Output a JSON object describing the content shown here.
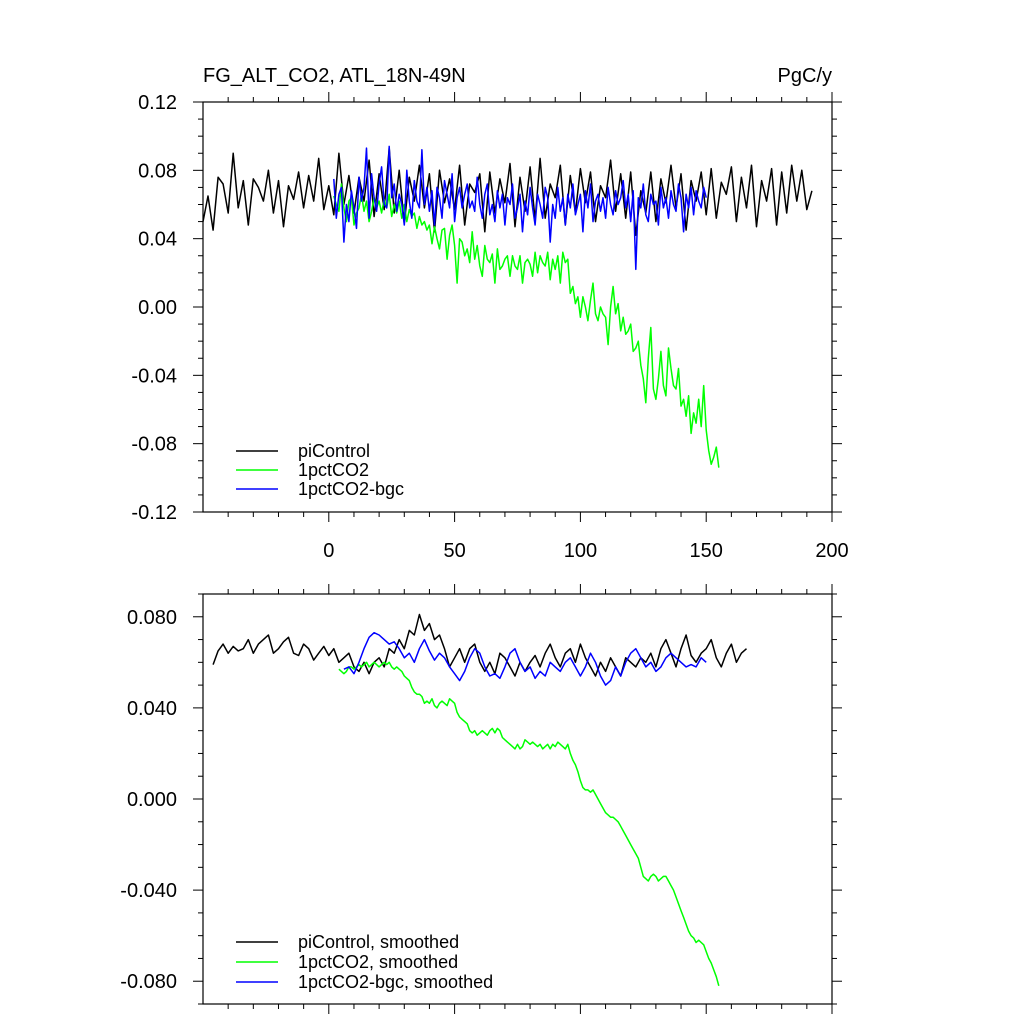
{
  "chart_data": [
    {
      "type": "line",
      "title_left": "FG_ALT_CO2, ATL_18N-49N",
      "title_right": "PgC/y",
      "xlabel": "",
      "ylabel": "",
      "xlim": [
        -50,
        200
      ],
      "ylim": [
        -0.12,
        0.12
      ],
      "xticks": [
        0,
        50,
        100,
        150,
        200
      ],
      "xtick_labels": [
        "0",
        "50",
        "100",
        "150",
        "200"
      ],
      "yticks": [
        -0.12,
        -0.08,
        -0.04,
        0.0,
        0.04,
        0.08,
        0.12
      ],
      "ytick_labels": [
        "-0.12",
        "-0.08",
        "-0.04",
        "0.00",
        "0.04",
        "0.08",
        "0.12"
      ],
      "legend_position": "bottom-left",
      "series": [
        {
          "name": "piControl",
          "color": "#000000",
          "x_start": -50,
          "x_step": 2,
          "values": [
            0.05,
            0.065,
            0.045,
            0.076,
            0.072,
            0.055,
            0.09,
            0.058,
            0.074,
            0.048,
            0.075,
            0.07,
            0.062,
            0.08,
            0.055,
            0.074,
            0.047,
            0.071,
            0.063,
            0.079,
            0.058,
            0.077,
            0.062,
            0.087,
            0.057,
            0.071,
            0.054,
            0.09,
            0.06,
            0.077,
            0.055,
            0.076,
            0.062,
            0.086,
            0.053,
            0.078,
            0.057,
            0.093,
            0.055,
            0.08,
            0.049,
            0.076,
            0.062,
            0.083,
            0.058,
            0.078,
            0.044,
            0.08,
            0.061,
            0.075,
            0.057,
            0.083,
            0.048,
            0.072,
            0.067,
            0.078,
            0.044,
            0.079,
            0.055,
            0.075,
            0.061,
            0.084,
            0.047,
            0.076,
            0.056,
            0.082,
            0.051,
            0.087,
            0.052,
            0.072,
            0.064,
            0.083,
            0.048,
            0.077,
            0.055,
            0.081,
            0.061,
            0.079,
            0.05,
            0.071,
            0.064,
            0.086,
            0.056,
            0.078,
            0.052,
            0.079,
            0.042,
            0.068,
            0.055,
            0.079,
            0.05,
            0.075,
            0.061,
            0.083,
            0.058,
            0.078,
            0.045,
            0.074,
            0.062,
            0.079,
            0.054,
            0.081,
            0.052,
            0.073,
            0.066,
            0.082,
            0.05,
            0.076,
            0.058,
            0.083,
            0.047,
            0.074,
            0.062,
            0.081,
            0.048,
            0.079,
            0.055,
            0.083,
            0.062,
            0.08,
            0.057,
            0.068
          ]
        },
        {
          "name": "1pctCO2",
          "color": "#00ff00",
          "x_start": 2,
          "x_step": 1,
          "values": [
            0.065,
            0.06,
            0.056,
            0.072,
            0.058,
            0.05,
            0.062,
            0.064,
            0.048,
            0.055,
            0.058,
            0.066,
            0.056,
            0.062,
            0.05,
            0.056,
            0.064,
            0.058,
            0.062,
            0.055,
            0.063,
            0.058,
            0.066,
            0.053,
            0.06,
            0.055,
            0.062,
            0.052,
            0.06,
            0.05,
            0.057,
            0.053,
            0.055,
            0.046,
            0.053,
            0.048,
            0.05,
            0.045,
            0.048,
            0.037,
            0.047,
            0.04,
            0.034,
            0.045,
            0.046,
            0.028,
            0.042,
            0.048,
            0.036,
            0.014,
            0.04,
            0.038,
            0.03,
            0.034,
            0.026,
            0.044,
            0.028,
            0.036,
            0.024,
            0.018,
            0.036,
            0.028,
            0.026,
            0.031,
            0.014,
            0.034,
            0.022,
            0.024,
            0.028,
            0.03,
            0.018,
            0.03,
            0.024,
            0.022,
            0.03,
            0.014,
            0.026,
            0.028,
            0.025,
            0.018,
            0.032,
            0.02,
            0.03,
            0.026,
            0.024,
            0.032,
            0.016,
            0.028,
            0.022,
            0.03,
            0.014,
            0.032,
            0.026,
            0.028,
            0.008,
            0.012,
            0.002,
            0.006,
            -0.006,
            0.006,
            0.0,
            -0.008,
            0.004,
            0.014,
            -0.004,
            -0.008,
            0.0,
            -0.004,
            -0.006,
            -0.022,
            0.0,
            0.012,
            -0.004,
            0.002,
            -0.014,
            -0.006,
            -0.016,
            -0.014,
            -0.01,
            -0.026,
            -0.024,
            -0.02,
            -0.034,
            -0.042,
            -0.056,
            -0.03,
            -0.012,
            -0.048,
            -0.054,
            -0.042,
            -0.026,
            -0.046,
            -0.052,
            -0.024,
            -0.036,
            -0.046,
            -0.048,
            -0.036,
            -0.058,
            -0.054,
            -0.064,
            -0.052,
            -0.074,
            -0.062,
            -0.068,
            -0.054,
            -0.07,
            -0.046,
            -0.072,
            -0.084,
            -0.092,
            -0.088,
            -0.082,
            -0.094
          ]
        },
        {
          "name": "1pctCO2-bgc",
          "color": "#0000ff",
          "x_start": 2,
          "x_step": 1,
          "values": [
            0.075,
            0.052,
            0.066,
            0.07,
            0.038,
            0.06,
            0.05,
            0.068,
            0.058,
            0.046,
            0.076,
            0.062,
            0.07,
            0.093,
            0.052,
            0.078,
            0.064,
            0.056,
            0.072,
            0.082,
            0.06,
            0.058,
            0.094,
            0.064,
            0.072,
            0.056,
            0.066,
            0.06,
            0.048,
            0.08,
            0.062,
            0.052,
            0.074,
            0.062,
            0.058,
            0.092,
            0.06,
            0.07,
            0.056,
            0.068,
            0.048,
            0.07,
            0.064,
            0.052,
            0.074,
            0.066,
            0.058,
            0.078,
            0.05,
            0.064,
            0.07,
            0.058,
            0.066,
            0.072,
            0.058,
            0.062,
            0.056,
            0.076,
            0.06,
            0.052,
            0.066,
            0.072,
            0.054,
            0.06,
            0.05,
            0.068,
            0.058,
            0.066,
            0.048,
            0.064,
            0.06,
            0.072,
            0.052,
            0.058,
            0.066,
            0.044,
            0.062,
            0.054,
            0.07,
            0.058,
            0.048,
            0.066,
            0.06,
            0.052,
            0.07,
            0.064,
            0.038,
            0.06,
            0.052,
            0.07,
            0.056,
            0.064,
            0.048,
            0.066,
            0.058,
            0.072,
            0.054,
            0.06,
            0.066,
            0.044,
            0.068,
            0.058,
            0.072,
            0.05,
            0.062,
            0.066,
            0.056,
            0.064,
            0.052,
            0.07,
            0.06,
            0.054,
            0.068,
            0.06,
            0.064,
            0.074,
            0.058,
            0.066,
            0.05,
            0.068,
            0.022,
            0.064,
            0.058,
            0.072,
            0.054,
            0.05,
            0.066,
            0.06,
            0.062,
            0.048,
            0.07,
            0.058,
            0.064,
            0.052,
            0.068,
            0.06,
            0.056,
            0.072,
            0.064,
            0.044,
            0.066,
            0.058,
            0.07,
            0.054,
            0.068,
            0.062,
            0.058,
            0.07,
            0.064
          ]
        }
      ]
    },
    {
      "type": "line",
      "title_left": "",
      "title_right": "",
      "xlabel": "",
      "ylabel": "",
      "xlim": [
        -50,
        200
      ],
      "ylim": [
        -0.09,
        0.09
      ],
      "xticks": [
        0,
        50,
        100,
        150,
        200
      ],
      "xtick_labels": [],
      "yticks": [
        -0.08,
        -0.04,
        0.0,
        0.04,
        0.08
      ],
      "ytick_labels": [
        "-0.080",
        "-0.040",
        "0.000",
        "0.040",
        "0.080"
      ],
      "legend_position": "bottom-left",
      "series": [
        {
          "name": "piControl, smoothed",
          "color": "#000000",
          "x_start": -46,
          "x_step": 2,
          "values": [
            0.059,
            0.065,
            0.068,
            0.064,
            0.067,
            0.065,
            0.066,
            0.07,
            0.064,
            0.068,
            0.07,
            0.072,
            0.064,
            0.066,
            0.069,
            0.071,
            0.064,
            0.063,
            0.068,
            0.066,
            0.061,
            0.064,
            0.067,
            0.063,
            0.066,
            0.06,
            0.062,
            0.064,
            0.058,
            0.056,
            0.06,
            0.055,
            0.06,
            0.062,
            0.058,
            0.066,
            0.064,
            0.07,
            0.066,
            0.074,
            0.072,
            0.081,
            0.074,
            0.077,
            0.07,
            0.072,
            0.066,
            0.058,
            0.062,
            0.066,
            0.06,
            0.066,
            0.068,
            0.06,
            0.056,
            0.06,
            0.055,
            0.064,
            0.062,
            0.058,
            0.054,
            0.06,
            0.056,
            0.06,
            0.063,
            0.058,
            0.064,
            0.068,
            0.062,
            0.058,
            0.064,
            0.066,
            0.06,
            0.068,
            0.062,
            0.058,
            0.054,
            0.06,
            0.056,
            0.062,
            0.058,
            0.054,
            0.062,
            0.06,
            0.058,
            0.062,
            0.06,
            0.064,
            0.058,
            0.066,
            0.07,
            0.064,
            0.058,
            0.066,
            0.072,
            0.063,
            0.06,
            0.064,
            0.066,
            0.07,
            0.062,
            0.058,
            0.064,
            0.068,
            0.06,
            0.064,
            0.066
          ]
        },
        {
          "name": "1pctCO2, smoothed",
          "color": "#00ff00",
          "x_start": 4,
          "x_step": 1,
          "values": [
            0.057,
            0.056,
            0.055,
            0.056,
            0.058,
            0.058,
            0.057,
            0.058,
            0.059,
            0.058,
            0.059,
            0.06,
            0.058,
            0.059,
            0.06,
            0.059,
            0.058,
            0.059,
            0.06,
            0.059,
            0.06,
            0.058,
            0.057,
            0.058,
            0.057,
            0.056,
            0.054,
            0.053,
            0.052,
            0.049,
            0.047,
            0.046,
            0.046,
            0.045,
            0.042,
            0.043,
            0.042,
            0.044,
            0.041,
            0.04,
            0.042,
            0.043,
            0.042,
            0.041,
            0.044,
            0.043,
            0.042,
            0.038,
            0.036,
            0.035,
            0.034,
            0.033,
            0.03,
            0.029,
            0.03,
            0.028,
            0.029,
            0.03,
            0.029,
            0.028,
            0.03,
            0.031,
            0.029,
            0.031,
            0.03,
            0.027,
            0.026,
            0.025,
            0.024,
            0.023,
            0.022,
            0.024,
            0.022,
            0.023,
            0.026,
            0.025,
            0.024,
            0.025,
            0.024,
            0.023,
            0.024,
            0.022,
            0.023,
            0.024,
            0.022,
            0.024,
            0.023,
            0.025,
            0.024,
            0.023,
            0.022,
            0.024,
            0.02,
            0.017,
            0.015,
            0.012,
            0.008,
            0.005,
            0.004,
            0.004,
            0.003,
            0.004,
            0.002,
            0.0,
            -0.002,
            -0.004,
            -0.006,
            -0.007,
            -0.008,
            -0.008,
            -0.009,
            -0.01,
            -0.012,
            -0.014,
            -0.016,
            -0.018,
            -0.02,
            -0.022,
            -0.024,
            -0.026,
            -0.03,
            -0.034,
            -0.035,
            -0.036,
            -0.034,
            -0.033,
            -0.034,
            -0.036,
            -0.035,
            -0.034,
            -0.034,
            -0.036,
            -0.038,
            -0.04,
            -0.043,
            -0.046,
            -0.049,
            -0.052,
            -0.055,
            -0.058,
            -0.06,
            -0.061,
            -0.063,
            -0.062,
            -0.063,
            -0.064,
            -0.067,
            -0.07,
            -0.072,
            -0.075,
            -0.078,
            -0.082
          ]
        },
        {
          "name": "1pctCO2-bgc, smoothed",
          "color": "#0000ff",
          "x_start": 6,
          "x_step": 2,
          "values": [
            0.057,
            0.058,
            0.055,
            0.06,
            0.066,
            0.071,
            0.073,
            0.072,
            0.07,
            0.068,
            0.069,
            0.066,
            0.062,
            0.064,
            0.06,
            0.066,
            0.07,
            0.065,
            0.061,
            0.064,
            0.062,
            0.058,
            0.055,
            0.052,
            0.056,
            0.062,
            0.066,
            0.064,
            0.058,
            0.054,
            0.055,
            0.053,
            0.058,
            0.064,
            0.066,
            0.06,
            0.056,
            0.058,
            0.053,
            0.056,
            0.054,
            0.06,
            0.058,
            0.056,
            0.06,
            0.062,
            0.058,
            0.054,
            0.058,
            0.064,
            0.06,
            0.054,
            0.05,
            0.052,
            0.058,
            0.054,
            0.06,
            0.064,
            0.066,
            0.062,
            0.058,
            0.06,
            0.056,
            0.058,
            0.062,
            0.064,
            0.062,
            0.06,
            0.058,
            0.059,
            0.058,
            0.062,
            0.06
          ]
        }
      ]
    }
  ]
}
